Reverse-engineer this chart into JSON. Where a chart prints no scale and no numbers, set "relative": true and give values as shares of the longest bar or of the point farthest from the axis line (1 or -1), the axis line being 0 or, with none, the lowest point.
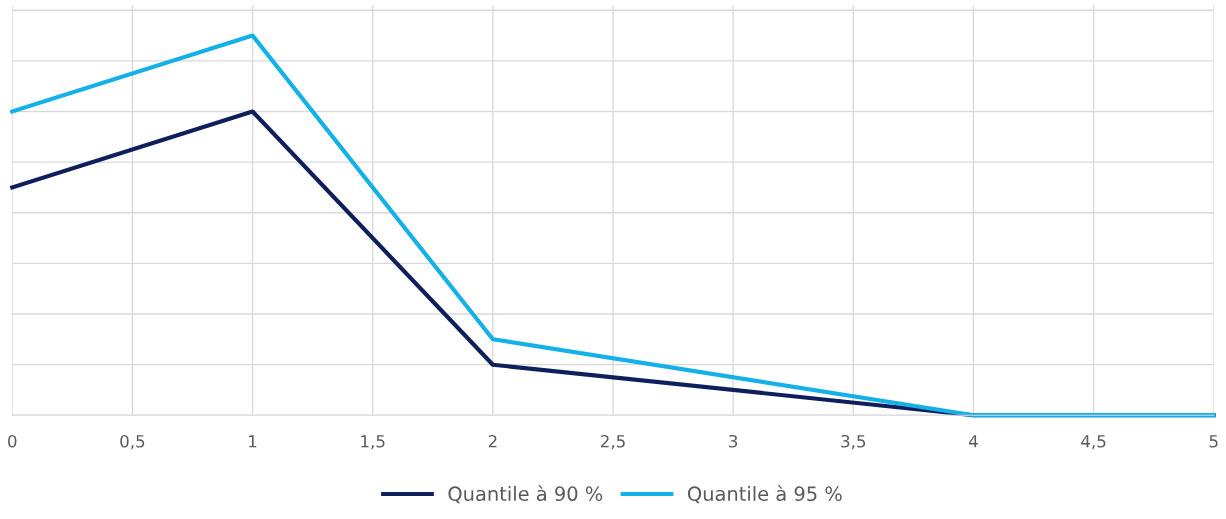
{
  "chart_data": {
    "type": "line",
    "relative": true,
    "x": [
      0,
      1,
      2,
      4,
      5
    ],
    "series": [
      {
        "name": "Quantile à 90 %",
        "color": "#0e1f5b",
        "values": [
          0.6,
          0.8,
          0.133,
          0,
          0
        ]
      },
      {
        "name": "Quantile à 95 %",
        "color": "#14b0e8",
        "values": [
          0.8,
          1,
          0.2,
          0,
          0
        ]
      }
    ],
    "xlim": [
      0,
      5
    ],
    "xticks": [
      0,
      {
        "value": 0.5,
        "label": "0,5"
      },
      1,
      {
        "value": 1.5,
        "label": "1,5"
      },
      2,
      {
        "value": 2.5,
        "label": "2,5"
      },
      3,
      {
        "value": 3.5,
        "label": "3,5"
      },
      4,
      {
        "value": 4.5,
        "label": "4,5"
      },
      5
    ],
    "grid": true,
    "legend": "bottom",
    "line_style": "solid",
    "marker": "none"
  }
}
